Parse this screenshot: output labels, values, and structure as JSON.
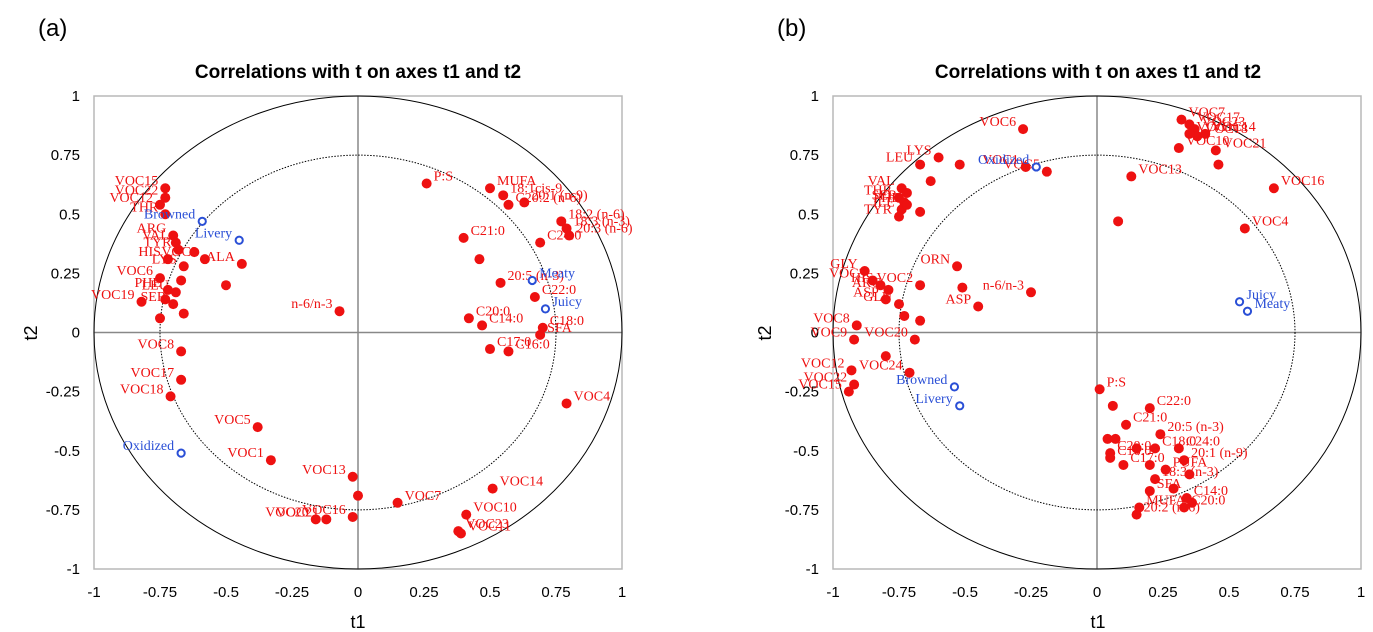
{
  "panel_letters": [
    "(a)",
    "(b)"
  ],
  "colors": {
    "variable": "#ee1111",
    "sensory": "#2a4fd6",
    "circle": "#000000",
    "axis": "#888888",
    "frame": "#b8b8b8"
  },
  "chart_data": [
    {
      "type": "scatter",
      "title": "Correlations with t on axes t1 and t2",
      "xlabel": "t1",
      "ylabel": "t2",
      "xlim": [
        -1,
        1
      ],
      "ylim": [
        -1,
        1
      ],
      "xticks": [
        "-1",
        "-0.75",
        "-0.5",
        "-0.25",
        "0",
        "0.25",
        "0.5",
        "0.75",
        "1"
      ],
      "yticks": [
        "1",
        "0.75",
        "0.5",
        "0.25",
        "0",
        "-0.25",
        "-0.5",
        "-0.75",
        "-1"
      ],
      "circles": [
        1.0,
        0.75
      ],
      "grid": false,
      "points": [
        {
          "x": 0.26,
          "y": 0.63,
          "label": "P:S",
          "group": "variable"
        },
        {
          "x": 0.5,
          "y": 0.61,
          "label": "MUFA",
          "group": "variable"
        },
        {
          "x": 0.55,
          "y": 0.58,
          "label": "18:1cis-9",
          "group": "variable"
        },
        {
          "x": 0.63,
          "y": 0.55,
          "label": "20:1 (n-9)",
          "group": "variable"
        },
        {
          "x": 0.57,
          "y": 0.54,
          "label": "C20:2 (n-6)",
          "group": "variable"
        },
        {
          "x": 0.77,
          "y": 0.47,
          "label": "18:2 (n-6)",
          "group": "variable"
        },
        {
          "x": 0.79,
          "y": 0.44,
          "label": "18:3 (n-3)",
          "group": "variable"
        },
        {
          "x": 0.8,
          "y": 0.41,
          "label": "20:3 (n-6)",
          "group": "variable"
        },
        {
          "x": 0.4,
          "y": 0.4,
          "label": "C21:0",
          "group": "variable"
        },
        {
          "x": 0.69,
          "y": 0.38,
          "label": "C24:0",
          "group": "variable"
        },
        {
          "x": 0.46,
          "y": 0.31,
          "label": "",
          "group": "variable"
        },
        {
          "x": 0.54,
          "y": 0.21,
          "label": "20:5 (n-3)",
          "group": "variable"
        },
        {
          "x": 0.67,
          "y": 0.15,
          "label": "C22:0",
          "group": "variable"
        },
        {
          "x": 0.42,
          "y": 0.06,
          "label": "C20:0",
          "group": "variable"
        },
        {
          "x": 0.47,
          "y": 0.03,
          "label": "C14:0",
          "group": "variable"
        },
        {
          "x": 0.7,
          "y": 0.02,
          "label": "C18:0",
          "group": "variable"
        },
        {
          "x": 0.69,
          "y": -0.01,
          "label": "SFA",
          "group": "variable"
        },
        {
          "x": 0.5,
          "y": -0.07,
          "label": "C17:0",
          "group": "variable"
        },
        {
          "x": 0.57,
          "y": -0.08,
          "label": "C16:0",
          "group": "variable"
        },
        {
          "x": -0.07,
          "y": 0.09,
          "label": "n-6/n-3",
          "group": "variable"
        },
        {
          "x": 0.79,
          "y": -0.3,
          "label": "VOC4",
          "group": "variable"
        },
        {
          "x": 0.51,
          "y": -0.66,
          "label": "VOC14",
          "group": "variable"
        },
        {
          "x": 0.41,
          "y": -0.77,
          "label": "VOC10",
          "group": "variable"
        },
        {
          "x": 0.39,
          "y": -0.85,
          "label": "VOC11",
          "group": "variable"
        },
        {
          "x": 0.38,
          "y": -0.84,
          "label": "VOC23",
          "group": "variable"
        },
        {
          "x": 0.15,
          "y": -0.72,
          "label": "VOC7",
          "group": "variable"
        },
        {
          "x": -0.02,
          "y": -0.61,
          "label": "VOC13",
          "group": "variable"
        },
        {
          "x": 0,
          "y": -0.69,
          "label": "",
          "group": "variable"
        },
        {
          "x": -0.02,
          "y": -0.78,
          "label": "VOC16",
          "group": "variable"
        },
        {
          "x": -0.12,
          "y": -0.79,
          "label": "VOC21",
          "group": "variable"
        },
        {
          "x": -0.16,
          "y": -0.79,
          "label": "VOC20",
          "group": "variable"
        },
        {
          "x": -0.33,
          "y": -0.54,
          "label": "VOC1",
          "group": "variable"
        },
        {
          "x": -0.38,
          "y": -0.4,
          "label": "VOC5",
          "group": "variable"
        },
        {
          "x": -0.67,
          "y": -0.08,
          "label": "VOC8",
          "group": "variable"
        },
        {
          "x": -0.67,
          "y": -0.2,
          "label": "VOC17",
          "group": "variable"
        },
        {
          "x": -0.71,
          "y": -0.27,
          "label": "VOC18",
          "group": "variable"
        },
        {
          "x": -0.73,
          "y": 0.61,
          "label": "VOC15",
          "group": "variable"
        },
        {
          "x": -0.73,
          "y": 0.57,
          "label": "VOC22",
          "group": "variable"
        },
        {
          "x": -0.75,
          "y": 0.54,
          "label": "VOC12",
          "group": "variable"
        },
        {
          "x": -0.73,
          "y": 0.5,
          "label": "THR",
          "group": "variable"
        },
        {
          "x": -0.7,
          "y": 0.41,
          "label": "ARG",
          "group": "variable"
        },
        {
          "x": -0.69,
          "y": 0.38,
          "label": "VAL",
          "group": "variable"
        },
        {
          "x": -0.68,
          "y": 0.35,
          "label": "TYR",
          "group": "variable"
        },
        {
          "x": -0.62,
          "y": 0.34,
          "label": "",
          "group": "variable"
        },
        {
          "x": -0.58,
          "y": 0.31,
          "label": "VOC3",
          "group": "variable"
        },
        {
          "x": -0.72,
          "y": 0.31,
          "label": "HIS",
          "group": "variable"
        },
        {
          "x": -0.66,
          "y": 0.28,
          "label": "LYS",
          "group": "variable"
        },
        {
          "x": -0.44,
          "y": 0.29,
          "label": "ALA",
          "group": "variable"
        },
        {
          "x": -0.75,
          "y": 0.23,
          "label": "VOC6",
          "group": "variable"
        },
        {
          "x": -0.67,
          "y": 0.22,
          "label": "",
          "group": "variable"
        },
        {
          "x": -0.72,
          "y": 0.18,
          "label": "PHE",
          "group": "variable"
        },
        {
          "x": -0.69,
          "y": 0.17,
          "label": "LEU",
          "group": "variable"
        },
        {
          "x": -0.73,
          "y": 0.14,
          "label": "",
          "group": "variable"
        },
        {
          "x": -0.82,
          "y": 0.13,
          "label": "VOC19",
          "group": "variable"
        },
        {
          "x": -0.7,
          "y": 0.12,
          "label": "SER",
          "group": "variable"
        },
        {
          "x": -0.75,
          "y": 0.06,
          "label": "",
          "group": "variable"
        },
        {
          "x": -0.66,
          "y": 0.08,
          "label": "",
          "group": "variable"
        },
        {
          "x": -0.5,
          "y": 0.2,
          "label": "",
          "group": "variable"
        },
        {
          "x": -0.59,
          "y": 0.47,
          "label": "Browned",
          "group": "sensory"
        },
        {
          "x": -0.45,
          "y": 0.39,
          "label": "Livery",
          "group": "sensory"
        },
        {
          "x": 0.66,
          "y": 0.22,
          "label": "Meaty",
          "group": "sensory"
        },
        {
          "x": 0.71,
          "y": 0.1,
          "label": "Juicy",
          "group": "sensory"
        },
        {
          "x": -0.67,
          "y": -0.51,
          "label": "Oxidized",
          "group": "sensory"
        }
      ]
    },
    {
      "type": "scatter",
      "title": "Correlations with t on axes t1 and t2",
      "xlabel": "t1",
      "ylabel": "t2",
      "xlim": [
        -1,
        1
      ],
      "ylim": [
        -1,
        1
      ],
      "xticks": [
        "-1",
        "-0.75",
        "-0.5",
        "-0.25",
        "0",
        "0.25",
        "0.5",
        "0.75",
        "1"
      ],
      "yticks": [
        "1",
        "0.75",
        "0.5",
        "0.25",
        "0",
        "-0.25",
        "-0.5",
        "-0.75",
        "-1"
      ],
      "circles": [
        1.0,
        0.75
      ],
      "grid": false,
      "points": [
        {
          "x": -0.28,
          "y": 0.86,
          "label": "VOC6",
          "group": "variable"
        },
        {
          "x": -0.6,
          "y": 0.74,
          "label": "LYS",
          "group": "variable"
        },
        {
          "x": -0.67,
          "y": 0.71,
          "label": "LEU",
          "group": "variable"
        },
        {
          "x": -0.74,
          "y": 0.61,
          "label": "VAL",
          "group": "variable"
        },
        {
          "x": -0.75,
          "y": 0.57,
          "label": "THR",
          "group": "variable"
        },
        {
          "x": -0.73,
          "y": 0.55,
          "label": "SER",
          "group": "variable"
        },
        {
          "x": -0.74,
          "y": 0.52,
          "label": "ILE",
          "group": "variable"
        },
        {
          "x": -0.75,
          "y": 0.49,
          "label": "TYR",
          "group": "variable"
        },
        {
          "x": -0.72,
          "y": 0.54,
          "label": "PHE",
          "group": "variable"
        },
        {
          "x": -0.72,
          "y": 0.59,
          "label": "",
          "group": "variable"
        },
        {
          "x": -0.67,
          "y": 0.51,
          "label": "",
          "group": "variable"
        },
        {
          "x": -0.63,
          "y": 0.64,
          "label": "",
          "group": "variable"
        },
        {
          "x": -0.52,
          "y": 0.71,
          "label": "",
          "group": "variable"
        },
        {
          "x": -0.27,
          "y": 0.7,
          "label": "VOC1",
          "group": "variable"
        },
        {
          "x": -0.19,
          "y": 0.68,
          "label": "VOC5",
          "group": "variable"
        },
        {
          "x": -0.67,
          "y": 0.2,
          "label": "VOC2",
          "group": "variable"
        },
        {
          "x": -0.53,
          "y": 0.28,
          "label": "ORN",
          "group": "variable"
        },
        {
          "x": -0.88,
          "y": 0.26,
          "label": "GLY",
          "group": "variable"
        },
        {
          "x": -0.85,
          "y": 0.22,
          "label": "VOC3",
          "group": "variable"
        },
        {
          "x": -0.82,
          "y": 0.2,
          "label": "HIS",
          "group": "variable"
        },
        {
          "x": -0.79,
          "y": 0.18,
          "label": "ARG",
          "group": "variable"
        },
        {
          "x": -0.8,
          "y": 0.14,
          "label": "ASP",
          "group": "variable"
        },
        {
          "x": -0.75,
          "y": 0.12,
          "label": "GLU",
          "group": "variable"
        },
        {
          "x": -0.51,
          "y": 0.19,
          "label": "",
          "group": "variable"
        },
        {
          "x": -0.45,
          "y": 0.11,
          "label": "ASP",
          "group": "variable"
        },
        {
          "x": -0.25,
          "y": 0.17,
          "label": "n-6/n-3",
          "group": "variable"
        },
        {
          "x": -0.73,
          "y": 0.07,
          "label": "",
          "group": "variable"
        },
        {
          "x": -0.67,
          "y": 0.05,
          "label": "",
          "group": "variable"
        },
        {
          "x": -0.91,
          "y": 0.03,
          "label": "VOC8",
          "group": "variable"
        },
        {
          "x": -0.92,
          "y": -0.03,
          "label": "VOC9",
          "group": "variable"
        },
        {
          "x": -0.69,
          "y": -0.03,
          "label": "VOC20",
          "group": "variable"
        },
        {
          "x": -0.8,
          "y": -0.1,
          "label": "",
          "group": "variable"
        },
        {
          "x": -0.93,
          "y": -0.16,
          "label": "VOC12",
          "group": "variable"
        },
        {
          "x": -0.71,
          "y": -0.17,
          "label": "VOC24",
          "group": "variable"
        },
        {
          "x": -0.92,
          "y": -0.22,
          "label": "VOC22",
          "group": "variable"
        },
        {
          "x": -0.94,
          "y": -0.25,
          "label": "VOC15",
          "group": "variable"
        },
        {
          "x": 0.32,
          "y": 0.9,
          "label": "VOC7",
          "group": "variable"
        },
        {
          "x": 0.35,
          "y": 0.88,
          "label": "VOC17",
          "group": "variable"
        },
        {
          "x": 0.37,
          "y": 0.86,
          "label": "VOC23",
          "group": "variable"
        },
        {
          "x": 0.38,
          "y": 0.83,
          "label": "VOC18",
          "group": "variable"
        },
        {
          "x": 0.35,
          "y": 0.84,
          "label": "VOC11",
          "group": "variable"
        },
        {
          "x": 0.41,
          "y": 0.84,
          "label": "VOC14",
          "group": "variable"
        },
        {
          "x": 0.31,
          "y": 0.78,
          "label": "VOC10",
          "group": "variable"
        },
        {
          "x": 0.45,
          "y": 0.77,
          "label": "VOC21",
          "group": "variable"
        },
        {
          "x": 0.46,
          "y": 0.71,
          "label": "",
          "group": "variable"
        },
        {
          "x": 0.67,
          "y": 0.61,
          "label": "VOC16",
          "group": "variable"
        },
        {
          "x": 0.13,
          "y": 0.66,
          "label": "VOC13",
          "group": "variable"
        },
        {
          "x": 0.08,
          "y": 0.47,
          "label": "",
          "group": "variable"
        },
        {
          "x": 0.56,
          "y": 0.44,
          "label": "VOC4",
          "group": "variable"
        },
        {
          "x": 0.01,
          "y": -0.24,
          "label": "P:S",
          "group": "variable"
        },
        {
          "x": 0.06,
          "y": -0.31,
          "label": "",
          "group": "variable"
        },
        {
          "x": 0.2,
          "y": -0.32,
          "label": "C22:0",
          "group": "variable"
        },
        {
          "x": 0.11,
          "y": -0.39,
          "label": "C21:0",
          "group": "variable"
        },
        {
          "x": 0.24,
          "y": -0.43,
          "label": "20:5 (n-3)",
          "group": "variable"
        },
        {
          "x": 0.04,
          "y": -0.45,
          "label": "",
          "group": "variable"
        },
        {
          "x": 0.07,
          "y": -0.45,
          "label": "",
          "group": "variable"
        },
        {
          "x": 0.05,
          "y": -0.51,
          "label": "C20:0",
          "group": "variable"
        },
        {
          "x": 0.05,
          "y": -0.53,
          "label": "C16:0",
          "group": "variable"
        },
        {
          "x": 0.15,
          "y": -0.49,
          "label": "",
          "group": "variable"
        },
        {
          "x": 0.22,
          "y": -0.49,
          "label": "C18:0",
          "group": "variable"
        },
        {
          "x": 0.31,
          "y": -0.49,
          "label": "C24:0",
          "group": "variable"
        },
        {
          "x": 0.1,
          "y": -0.56,
          "label": "C17:0",
          "group": "variable"
        },
        {
          "x": 0.2,
          "y": -0.56,
          "label": "",
          "group": "variable"
        },
        {
          "x": 0.33,
          "y": -0.54,
          "label": "20:1 (n-9)",
          "group": "variable"
        },
        {
          "x": 0.26,
          "y": -0.58,
          "label": "PUFA",
          "group": "variable"
        },
        {
          "x": 0.22,
          "y": -0.62,
          "label": "18:3 (n-3)",
          "group": "variable"
        },
        {
          "x": 0.35,
          "y": -0.6,
          "label": "",
          "group": "variable"
        },
        {
          "x": 0.29,
          "y": -0.66,
          "label": "",
          "group": "variable"
        },
        {
          "x": 0.2,
          "y": -0.67,
          "label": "SFA",
          "group": "variable"
        },
        {
          "x": 0.34,
          "y": -0.7,
          "label": "C14:0",
          "group": "variable"
        },
        {
          "x": 0.36,
          "y": -0.72,
          "label": "",
          "group": "variable"
        },
        {
          "x": 0.16,
          "y": -0.74,
          "label": "MUFA",
          "group": "variable"
        },
        {
          "x": 0.15,
          "y": -0.77,
          "label": "20:2 (n-6)",
          "group": "variable"
        },
        {
          "x": 0.33,
          "y": -0.74,
          "label": "C20:0",
          "group": "variable"
        },
        {
          "x": -0.23,
          "y": 0.7,
          "label": "Oxidized",
          "group": "sensory"
        },
        {
          "x": 0.54,
          "y": 0.13,
          "label": "Juicy",
          "group": "sensory"
        },
        {
          "x": 0.57,
          "y": 0.09,
          "label": "Meaty",
          "group": "sensory"
        },
        {
          "x": -0.54,
          "y": -0.23,
          "label": "Browned",
          "group": "sensory"
        },
        {
          "x": -0.52,
          "y": -0.31,
          "label": "Livery",
          "group": "sensory"
        }
      ]
    }
  ]
}
